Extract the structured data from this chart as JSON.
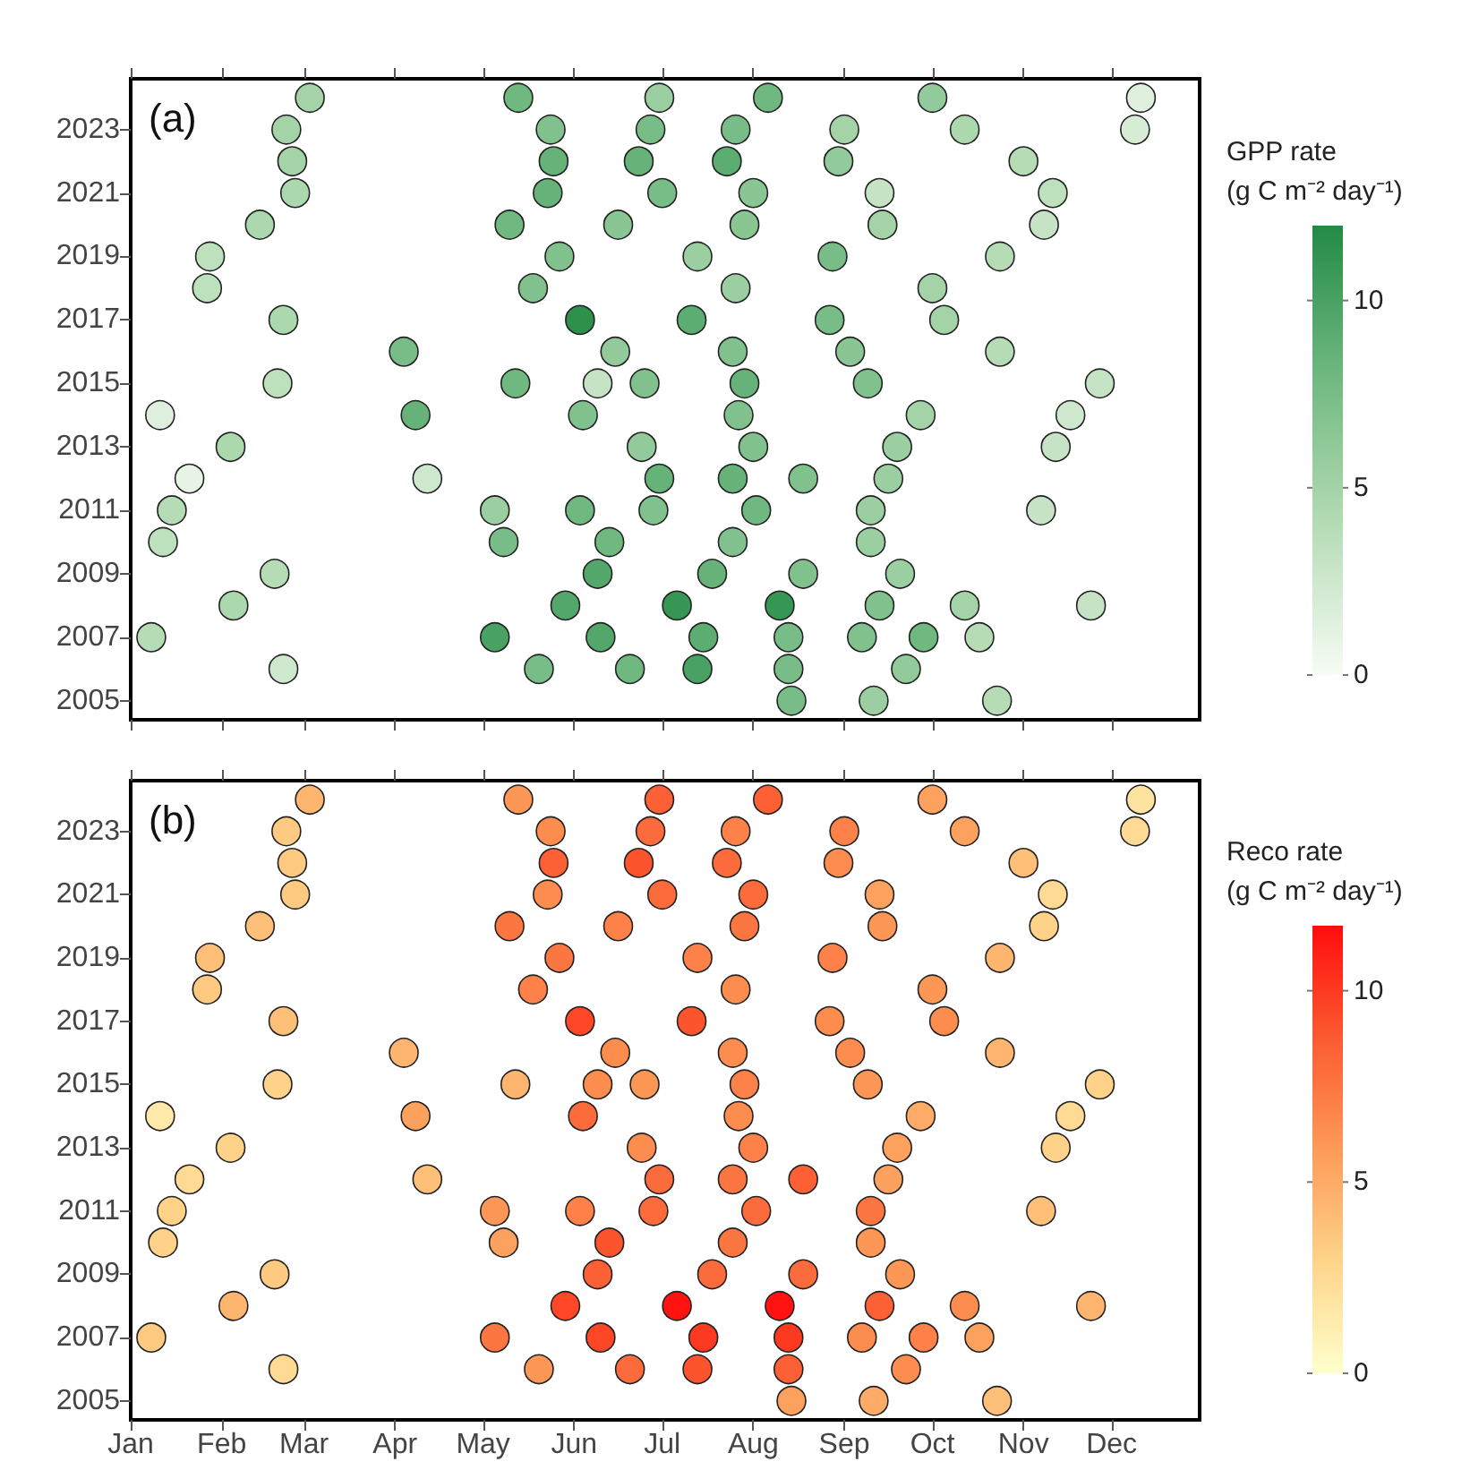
{
  "chart_data": [
    {
      "type": "scatter",
      "title": "(a)",
      "clabel": "GPP rate\n(g C m⁻² day⁻¹)",
      "marker": "circle",
      "grid": false,
      "tick_labels": "y",
      "xlim": [
        "--01-01",
        "--12-31"
      ],
      "ylim": [
        2004.4,
        2024.6
      ],
      "xticks": [
        {
          "value": "--01-01",
          "label": "Jan"
        },
        {
          "value": "--02-01",
          "label": "Feb"
        },
        {
          "value": "--03-01",
          "label": "Mar"
        },
        {
          "value": "--04-01",
          "label": "Apr"
        },
        {
          "value": "--05-01",
          "label": "May"
        },
        {
          "value": "--06-01",
          "label": "Jun"
        },
        {
          "value": "--07-01",
          "label": "Jul"
        },
        {
          "value": "--08-01",
          "label": "Aug"
        },
        {
          "value": "--09-01",
          "label": "Sep"
        },
        {
          "value": "--10-01",
          "label": "Oct"
        },
        {
          "value": "--11-01",
          "label": "Nov"
        },
        {
          "value": "--12-01",
          "label": "Dec"
        }
      ],
      "yticks": [
        2005,
        2007,
        2009,
        2011,
        2013,
        2015,
        2017,
        2019,
        2021,
        2023
      ],
      "clim": [
        0,
        12
      ],
      "cticks": [
        0,
        5,
        10
      ],
      "series": [
        {
          "x": [
            "--03-03",
            "--05-13",
            "--06-30",
            "--08-06",
            "--10-01",
            "--12-11",
            "--02-23",
            "--05-24",
            "--06-27",
            "--07-26",
            "--09-01",
            "--10-12",
            "--12-09",
            "--02-25",
            "--05-25",
            "--06-23",
            "--07-23",
            "--08-30",
            "--11-01",
            "--02-26",
            "--05-23",
            "--07-01",
            "--08-01",
            "--09-13",
            "--11-11",
            "--02-14",
            "--05-10",
            "--06-16",
            "--07-29",
            "--09-14",
            "--11-08",
            "--01-28",
            "--05-27",
            "--07-13",
            "--08-28",
            "--10-24",
            "--01-27",
            "--05-18",
            "--07-26",
            "--10-01",
            "--02-22",
            "--06-03",
            "--07-11",
            "--08-27",
            "--10-05",
            "--04-04",
            "--06-15",
            "--07-25",
            "--09-03",
            "--10-24",
            "--02-20",
            "--05-12",
            "--06-09",
            "--06-25",
            "--07-29",
            "--09-09",
            "--11-27",
            "--01-11",
            "--04-08",
            "--06-04",
            "--07-27",
            "--09-27",
            "--11-17",
            "--02-04",
            "--06-24",
            "--08-01",
            "--09-19",
            "--11-12",
            "--01-21",
            "--04-12",
            "--06-30",
            "--07-25",
            "--08-18",
            "--09-16",
            "--01-15",
            "--05-05",
            "--06-03",
            "--06-28",
            "--08-02",
            "--09-10",
            "--11-07",
            "--01-12",
            "--05-08",
            "--06-13",
            "--07-25",
            "--09-10",
            "--02-19",
            "--06-09",
            "--07-18",
            "--08-18",
            "--09-20",
            "--02-05",
            "--05-29",
            "--07-06",
            "--08-10",
            "--09-13",
            "--10-12",
            "--11-24",
            "--01-08",
            "--05-05",
            "--06-10",
            "--07-15",
            "--08-13",
            "--09-07",
            "--09-28",
            "--10-17",
            "--02-22",
            "--05-20",
            "--06-20",
            "--07-13",
            "--08-13",
            "--09-22",
            "--08-14",
            "--09-11",
            "--10-23"
          ],
          "values": [
            2024,
            2024,
            2024,
            2024,
            2024,
            2024,
            2023,
            2023,
            2023,
            2023,
            2023,
            2023,
            2023,
            2022,
            2022,
            2022,
            2022,
            2022,
            2022,
            2021,
            2021,
            2021,
            2021,
            2021,
            2021,
            2020,
            2020,
            2020,
            2020,
            2020,
            2020,
            2019,
            2019,
            2019,
            2019,
            2019,
            2018,
            2018,
            2018,
            2018,
            2017,
            2017,
            2017,
            2017,
            2017,
            2016,
            2016,
            2016,
            2016,
            2016,
            2015,
            2015,
            2015,
            2015,
            2015,
            2015,
            2015,
            2014,
            2014,
            2014,
            2014,
            2014,
            2014,
            2013,
            2013,
            2013,
            2013,
            2013,
            2012,
            2012,
            2012,
            2012,
            2012,
            2012,
            2011,
            2011,
            2011,
            2011,
            2011,
            2011,
            2011,
            2010,
            2010,
            2010,
            2010,
            2010,
            2009,
            2009,
            2009,
            2009,
            2009,
            2008,
            2008,
            2008,
            2008,
            2008,
            2008,
            2008,
            2007,
            2007,
            2007,
            2007,
            2007,
            2007,
            2007,
            2007,
            2006,
            2006,
            2006,
            2006,
            2006,
            2006,
            2005,
            2005,
            2005
          ],
          "cvalues": [
            5,
            8,
            5.5,
            8,
            6,
            1.5,
            5,
            7,
            7.5,
            7.5,
            5,
            4.5,
            2,
            5,
            8.5,
            8.5,
            9,
            6,
            4,
            4.5,
            8.5,
            7.5,
            6.5,
            3,
            3.5,
            4.5,
            8,
            6.5,
            6.5,
            5,
            3,
            3.5,
            7,
            5.5,
            7.5,
            4,
            3.5,
            7,
            5.5,
            5,
            4.5,
            11.5,
            9,
            7.5,
            5,
            7.5,
            6,
            7,
            6.5,
            4,
            3.5,
            8,
            3,
            7,
            8.5,
            7,
            3,
            1.5,
            8.5,
            7,
            7,
            5,
            2.5,
            4.5,
            6,
            7,
            5.5,
            3,
            1,
            2.5,
            8.5,
            8.5,
            7,
            5.5,
            4,
            5.5,
            8,
            7,
            8,
            5.5,
            3,
            3.5,
            7.5,
            8,
            7,
            5.5,
            4,
            9.5,
            8.5,
            7,
            5.5,
            4.5,
            9.5,
            11,
            11,
            7,
            5,
            3,
            4,
            10,
            9.5,
            9,
            7.5,
            7,
            8,
            4,
            2.5,
            7.5,
            8,
            10,
            7.5,
            6,
            7.5,
            5.5,
            4
          ]
        }
      ]
    },
    {
      "type": "scatter",
      "title": "(b)",
      "clabel": "Reco rate\n(g C m⁻² day⁻¹)",
      "marker": "circle",
      "grid": false,
      "xlim": [
        "--01-01",
        "--12-31"
      ],
      "ylim": [
        2004.4,
        2024.6
      ],
      "xticks": [
        {
          "value": "--01-01",
          "label": "Jan"
        },
        {
          "value": "--02-01",
          "label": "Feb"
        },
        {
          "value": "--03-01",
          "label": "Mar"
        },
        {
          "value": "--04-01",
          "label": "Apr"
        },
        {
          "value": "--05-01",
          "label": "May"
        },
        {
          "value": "--06-01",
          "label": "Jun"
        },
        {
          "value": "--07-01",
          "label": "Jul"
        },
        {
          "value": "--08-01",
          "label": "Aug"
        },
        {
          "value": "--09-01",
          "label": "Sep"
        },
        {
          "value": "--10-01",
          "label": "Oct"
        },
        {
          "value": "--11-01",
          "label": "Nov"
        },
        {
          "value": "--12-01",
          "label": "Dec"
        }
      ],
      "yticks": [
        2005,
        2007,
        2009,
        2011,
        2013,
        2015,
        2017,
        2019,
        2021,
        2023
      ],
      "clim": [
        0,
        11.7
      ],
      "cticks": [
        0,
        5,
        10
      ],
      "series": [
        {
          "x": [
            "--03-03",
            "--05-13",
            "--06-30",
            "--08-06",
            "--10-01",
            "--12-11",
            "--02-23",
            "--05-24",
            "--06-27",
            "--07-26",
            "--09-01",
            "--10-12",
            "--12-09",
            "--02-25",
            "--05-25",
            "--06-23",
            "--07-23",
            "--08-30",
            "--11-01",
            "--02-26",
            "--05-23",
            "--07-01",
            "--08-01",
            "--09-13",
            "--11-11",
            "--02-14",
            "--05-10",
            "--06-16",
            "--07-29",
            "--09-14",
            "--11-08",
            "--01-28",
            "--05-27",
            "--07-13",
            "--08-28",
            "--10-24",
            "--01-27",
            "--05-18",
            "--07-26",
            "--10-01",
            "--02-22",
            "--06-03",
            "--07-11",
            "--08-27",
            "--10-05",
            "--04-04",
            "--06-15",
            "--07-25",
            "--09-03",
            "--10-24",
            "--02-20",
            "--05-12",
            "--06-09",
            "--06-25",
            "--07-29",
            "--09-09",
            "--11-27",
            "--01-11",
            "--04-08",
            "--06-04",
            "--07-27",
            "--09-27",
            "--11-17",
            "--02-04",
            "--06-24",
            "--08-01",
            "--09-19",
            "--11-12",
            "--01-21",
            "--04-12",
            "--06-30",
            "--07-25",
            "--08-18",
            "--09-16",
            "--01-15",
            "--05-05",
            "--06-03",
            "--06-28",
            "--08-02",
            "--09-10",
            "--11-07",
            "--01-12",
            "--05-08",
            "--06-13",
            "--07-25",
            "--09-10",
            "--02-19",
            "--06-09",
            "--07-18",
            "--08-18",
            "--09-20",
            "--02-05",
            "--05-29",
            "--07-06",
            "--08-10",
            "--09-13",
            "--10-12",
            "--11-24",
            "--01-08",
            "--05-05",
            "--06-10",
            "--07-15",
            "--08-13",
            "--09-07",
            "--09-28",
            "--10-17",
            "--02-22",
            "--05-20",
            "--06-20",
            "--07-13",
            "--08-13",
            "--09-22",
            "--08-14",
            "--09-11",
            "--10-23"
          ],
          "values": [
            2024,
            2024,
            2024,
            2024,
            2024,
            2024,
            2023,
            2023,
            2023,
            2023,
            2023,
            2023,
            2023,
            2022,
            2022,
            2022,
            2022,
            2022,
            2022,
            2021,
            2021,
            2021,
            2021,
            2021,
            2021,
            2020,
            2020,
            2020,
            2020,
            2020,
            2020,
            2019,
            2019,
            2019,
            2019,
            2019,
            2018,
            2018,
            2018,
            2018,
            2017,
            2017,
            2017,
            2017,
            2017,
            2016,
            2016,
            2016,
            2016,
            2016,
            2015,
            2015,
            2015,
            2015,
            2015,
            2015,
            2015,
            2014,
            2014,
            2014,
            2014,
            2014,
            2014,
            2013,
            2013,
            2013,
            2013,
            2013,
            2012,
            2012,
            2012,
            2012,
            2012,
            2012,
            2011,
            2011,
            2011,
            2011,
            2011,
            2011,
            2011,
            2010,
            2010,
            2010,
            2010,
            2010,
            2009,
            2009,
            2009,
            2009,
            2009,
            2008,
            2008,
            2008,
            2008,
            2008,
            2008,
            2008,
            2007,
            2007,
            2007,
            2007,
            2007,
            2007,
            2007,
            2007,
            2006,
            2006,
            2006,
            2006,
            2006,
            2006,
            2005,
            2005,
            2005
          ],
          "cvalues": [
            4.5,
            6,
            8.5,
            8.5,
            5.5,
            2,
            3.5,
            6.5,
            8,
            7,
            7,
            5.5,
            2.5,
            3.5,
            8.5,
            9,
            8,
            6.5,
            4,
            3.5,
            6.5,
            8,
            8,
            5.5,
            2.5,
            4,
            7.5,
            7,
            7.5,
            6,
            3,
            4,
            7.5,
            7,
            7,
            4.5,
            3.5,
            7,
            6.5,
            6,
            4,
            9.5,
            9,
            6.5,
            6.5,
            4.5,
            6.5,
            6.5,
            6.5,
            4.5,
            3,
            4.5,
            6.5,
            6,
            7,
            6,
            3,
            1.5,
            5.5,
            8,
            6.5,
            5,
            2.5,
            3,
            6.5,
            7,
            5.5,
            3,
            2.5,
            4,
            8,
            7.5,
            8.5,
            5.5,
            3,
            6,
            7,
            8,
            8,
            7.5,
            4,
            3,
            5.5,
            9,
            7.5,
            6,
            3.5,
            8.5,
            8,
            8,
            6,
            4.5,
            9.5,
            11.5,
            11.5,
            8.5,
            6.5,
            4.5,
            3.5,
            7.5,
            9.5,
            10,
            10,
            6.5,
            7,
            5.5,
            2.5,
            6,
            8,
            9,
            8.5,
            6.5,
            5.5,
            5,
            4
          ]
        }
      ]
    }
  ]
}
